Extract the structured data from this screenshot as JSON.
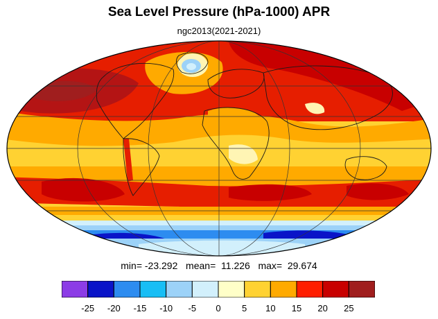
{
  "title": "Sea Level Pressure (hPa-1000) APR",
  "subtitle": "ngc2013(2021-2021)",
  "stats": {
    "min_label": "min=",
    "min": "-23.292",
    "mean_label": "mean=",
    "mean": "11.226",
    "max_label": "max=",
    "max": "29.674"
  },
  "colorbar": {
    "colors": [
      "#8c3ce6",
      "#0a14c8",
      "#2d8cf0",
      "#18bef5",
      "#9cd2f8",
      "#d2f0fc",
      "#ffffc8",
      "#ffd232",
      "#ffaa00",
      "#ff1e00",
      "#c80000",
      "#a01e1e"
    ],
    "tick_labels": [
      "-25",
      "-20",
      "-15",
      "-10",
      "-5",
      "0",
      "5",
      "10",
      "15",
      "20",
      "25"
    ]
  },
  "palette": {
    "deep_red": "#b41414",
    "red": "#e61e00",
    "orange": "#ffa500",
    "yellow": "#ffd232",
    "light_yellow": "#fff5b4",
    "pale_blue": "#d2f0fc",
    "light_blue": "#9cd2f8",
    "mid_blue": "#2d8cf0",
    "dark_blue": "#0a14c8"
  }
}
